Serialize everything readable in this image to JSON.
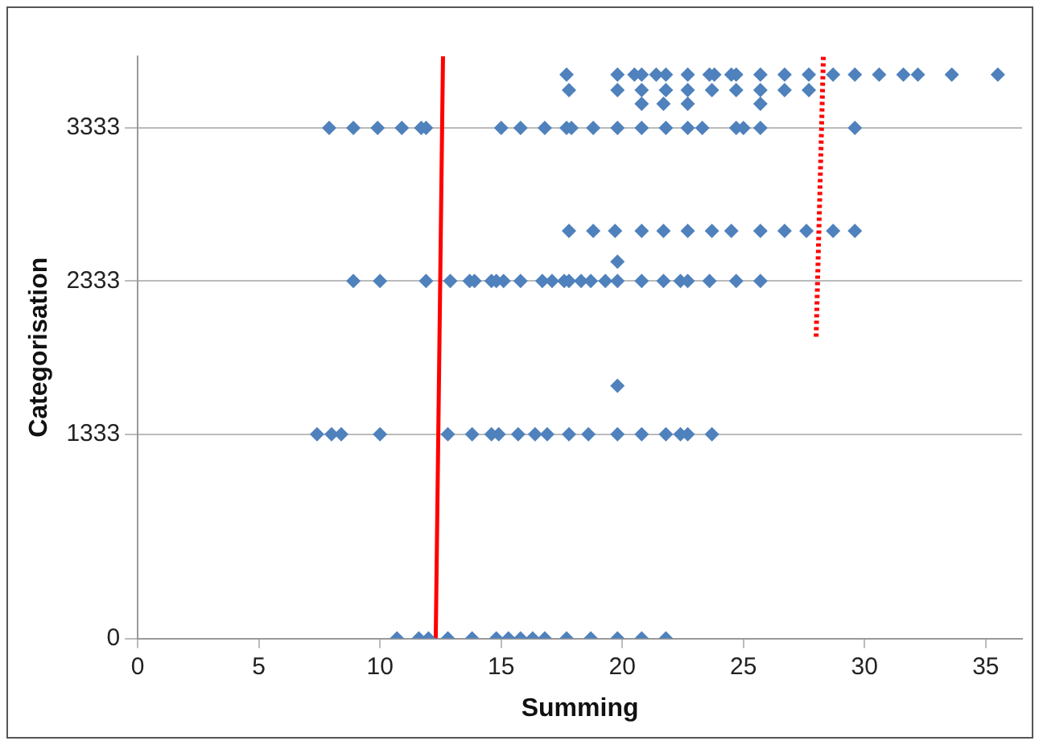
{
  "chart_data": {
    "type": "scatter",
    "xlabel": "Summing",
    "ylabel": "Categorisation",
    "xlim": [
      0,
      36.5
    ],
    "xticks": [
      0,
      5,
      10,
      15,
      20,
      25,
      30,
      35
    ],
    "ylim": [
      0,
      3800
    ],
    "yticks": [
      0,
      1333,
      2333,
      3333
    ],
    "grid": "y",
    "legend": false,
    "series": [
      {
        "color": "#4f81bd",
        "marker": "diamond",
        "x": [
          7.9,
          8.9,
          9.9,
          10.9,
          11.7,
          11.9,
          15.0,
          15.8,
          16.8,
          17.7,
          17.9,
          18.8,
          19.8,
          20.8,
          21.8,
          22.7,
          23.3,
          24.7,
          25.0,
          25.7,
          29.6,
          20.8,
          21.7,
          22.7,
          25.7,
          17.8,
          19.8,
          20.8,
          21.8,
          22.7,
          23.7,
          24.7,
          25.7,
          26.7,
          27.7,
          17.7,
          19.8,
          20.5,
          20.8,
          21.4,
          21.8,
          22.7,
          23.6,
          23.8,
          24.5,
          24.7,
          25.7,
          26.7,
          27.7,
          28.7,
          29.6,
          30.6,
          31.6,
          32.2,
          33.6,
          35.5,
          8.9,
          10.0,
          11.9,
          12.9,
          13.7,
          13.9,
          14.6,
          14.8,
          15.1,
          15.8,
          16.7,
          17.1,
          17.6,
          17.8,
          18.3,
          18.7,
          19.3,
          19.8,
          20.8,
          21.7,
          22.4,
          22.7,
          23.6,
          24.7,
          25.7,
          19.8,
          17.8,
          18.8,
          19.7,
          20.8,
          21.7,
          22.7,
          23.7,
          24.5,
          25.7,
          26.7,
          27.6,
          28.7,
          29.6,
          7.4,
          8.0,
          8.4,
          10.0,
          12.8,
          13.8,
          14.6,
          14.9,
          15.7,
          16.4,
          16.9,
          17.8,
          18.6,
          19.8,
          20.8,
          21.8,
          22.4,
          22.7,
          23.7,
          19.8,
          10.7,
          11.6,
          12.0,
          12.8,
          13.8,
          14.8,
          15.3,
          15.8,
          16.3,
          16.8,
          17.7,
          18.7,
          19.8,
          20.8,
          21.8
        ],
        "values": [
          3333,
          3333,
          3333,
          3333,
          3333,
          3333,
          3333,
          3333,
          3333,
          3333,
          3333,
          3333,
          3333,
          3333,
          3333,
          3333,
          3333,
          3333,
          3333,
          3333,
          3333,
          3490,
          3490,
          3490,
          3490,
          3580,
          3580,
          3580,
          3580,
          3580,
          3580,
          3580,
          3580,
          3580,
          3580,
          3680,
          3680,
          3680,
          3680,
          3680,
          3680,
          3680,
          3680,
          3680,
          3680,
          3680,
          3680,
          3680,
          3680,
          3680,
          3680,
          3680,
          3680,
          3680,
          3680,
          3680,
          2333,
          2333,
          2333,
          2333,
          2333,
          2333,
          2333,
          2333,
          2333,
          2333,
          2333,
          2333,
          2333,
          2333,
          2333,
          2333,
          2333,
          2333,
          2333,
          2333,
          2333,
          2333,
          2333,
          2333,
          2333,
          2460,
          2660,
          2660,
          2660,
          2660,
          2660,
          2660,
          2660,
          2660,
          2660,
          2660,
          2660,
          2660,
          2660,
          1333,
          1333,
          1333,
          1333,
          1333,
          1333,
          1333,
          1333,
          1333,
          1333,
          1333,
          1333,
          1333,
          1333,
          1333,
          1333,
          1333,
          1333,
          1333,
          1650,
          0,
          0,
          0,
          0,
          0,
          0,
          0,
          0,
          0,
          0,
          0,
          0,
          0,
          0,
          0
        ]
      },
      {
        "type": "line",
        "color": "#ff0000",
        "line_style": "solid",
        "x": [
          12.3,
          12.6
        ],
        "values": [
          0,
          3800
        ]
      },
      {
        "type": "line",
        "color": "#ff0000",
        "line_style": "dotted",
        "x": [
          28.0,
          28.3
        ],
        "values": [
          1970,
          3800
        ]
      }
    ]
  }
}
